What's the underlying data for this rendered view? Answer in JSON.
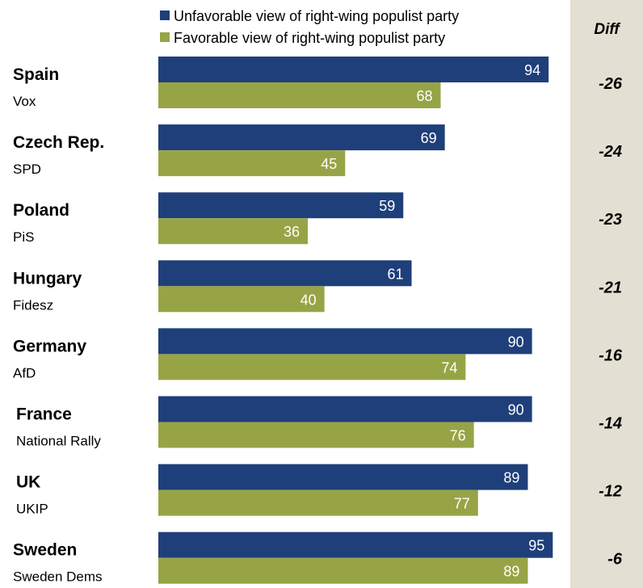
{
  "colors": {
    "unfavorable": "#1f3f7a",
    "favorable": "#97a446",
    "diff_panel": "#e3dfd2"
  },
  "legend": {
    "unfavorable": "Unfavorable view of right-wing populist party",
    "favorable": "Favorable view of right-wing populist party"
  },
  "diff_header": "Diff",
  "chart_data": {
    "type": "bar",
    "orientation": "horizontal",
    "categories": [
      {
        "country": "Spain",
        "party": "Vox"
      },
      {
        "country": "Czech Rep.",
        "party": "SPD"
      },
      {
        "country": "Poland",
        "party": "PiS"
      },
      {
        "country": "Hungary",
        "party": "Fidesz"
      },
      {
        "country": "Germany",
        "party": "AfD"
      },
      {
        "country": "France",
        "party": "National Rally"
      },
      {
        "country": "UK",
        "party": "UKIP"
      },
      {
        "country": "Sweden",
        "party": "Sweden Dems"
      }
    ],
    "series": [
      {
        "name": "Unfavorable view of right-wing populist party",
        "values": [
          94,
          69,
          59,
          61,
          90,
          90,
          89,
          95
        ]
      },
      {
        "name": "Favorable view of right-wing populist party",
        "values": [
          68,
          45,
          36,
          40,
          74,
          76,
          77,
          89
        ]
      }
    ],
    "diff": [
      "-26",
      "-24",
      "-23",
      "-21",
      "-16",
      "-14",
      "-12",
      "-6"
    ],
    "xlim": [
      0,
      100
    ]
  }
}
